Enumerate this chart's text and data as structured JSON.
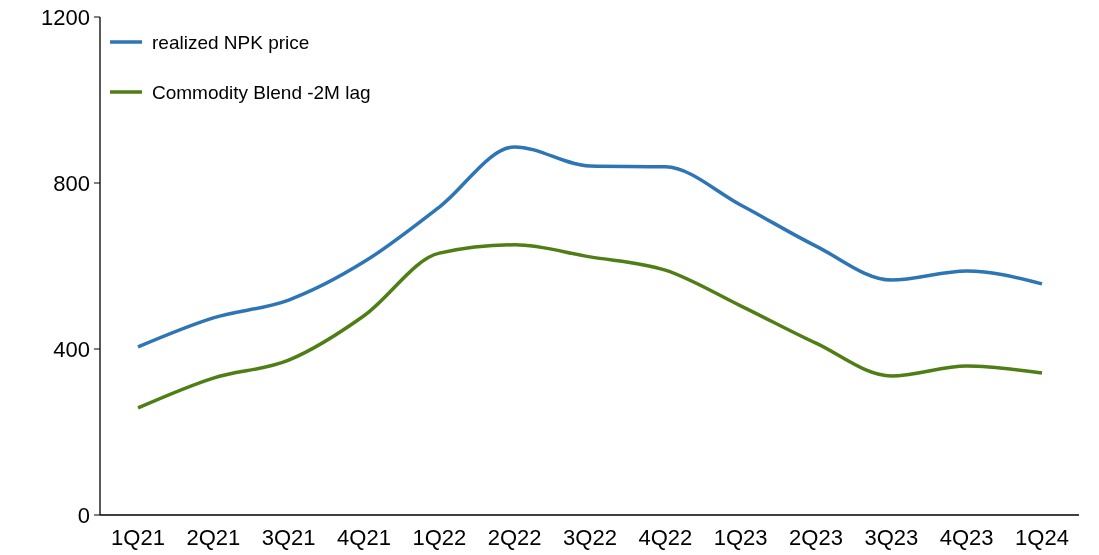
{
  "chart_data": {
    "type": "line",
    "categories": [
      "1Q21",
      "2Q21",
      "3Q21",
      "4Q21",
      "1Q22",
      "2Q22",
      "3Q22",
      "4Q22",
      "1Q23",
      "2Q23",
      "3Q23",
      "4Q23",
      "1Q24"
    ],
    "series": [
      {
        "name": "realized NPK price",
        "color": "#2e75b6",
        "values": [
          405,
          475,
          518,
          610,
          742,
          887,
          841,
          839,
          747,
          648,
          566,
          588,
          557
        ]
      },
      {
        "name": "Commodity Blend -2M lag",
        "color": "#4f7f14",
        "values": [
          258,
          330,
          373,
          480,
          631,
          651,
          622,
          590,
          504,
          414,
          335,
          359,
          342
        ]
      }
    ],
    "ylim": [
      0,
      1200
    ],
    "yticks": [
      0,
      400,
      800,
      1200
    ],
    "grid": false,
    "legend": "top left",
    "marker": "none",
    "line_style": "solid"
  }
}
